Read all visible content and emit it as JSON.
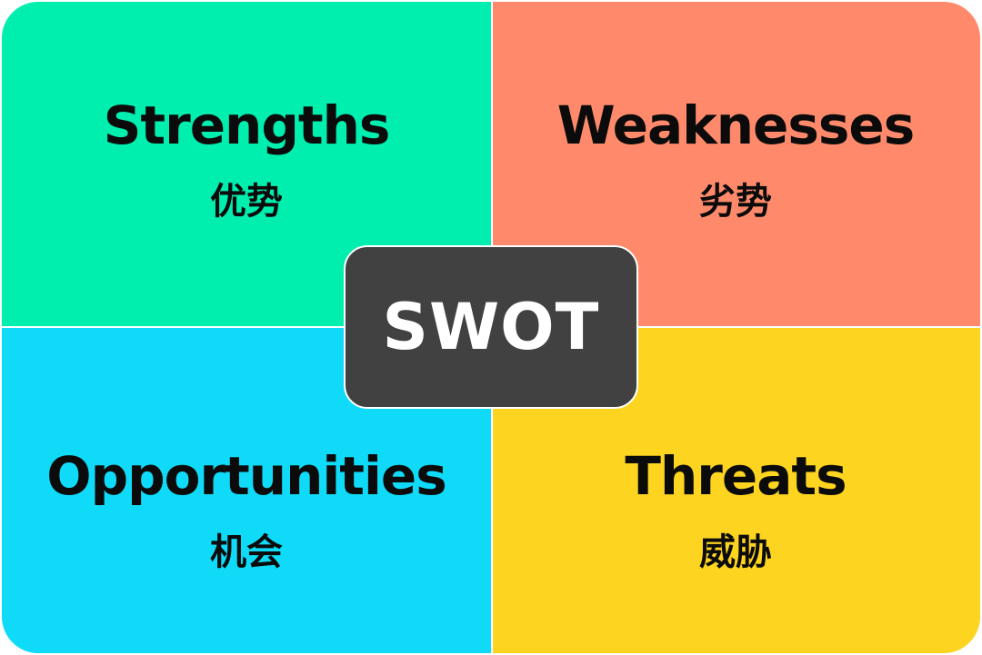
{
  "diagram": {
    "center": {
      "label": "SWOT",
      "color": "#414141"
    },
    "quadrants": [
      {
        "key": "strengths",
        "title": "Strengths",
        "subtitle": "优势",
        "color": "#00eeae"
      },
      {
        "key": "weaknesses",
        "title": "Weaknesses",
        "subtitle": "劣势",
        "color": "#ff8a6b"
      },
      {
        "key": "opportunities",
        "title": "Opportunities",
        "subtitle": "机会",
        "color": "#0fdbf9"
      },
      {
        "key": "threats",
        "title": "Threats",
        "subtitle": "威胁",
        "color": "#fdd41f"
      }
    ]
  }
}
